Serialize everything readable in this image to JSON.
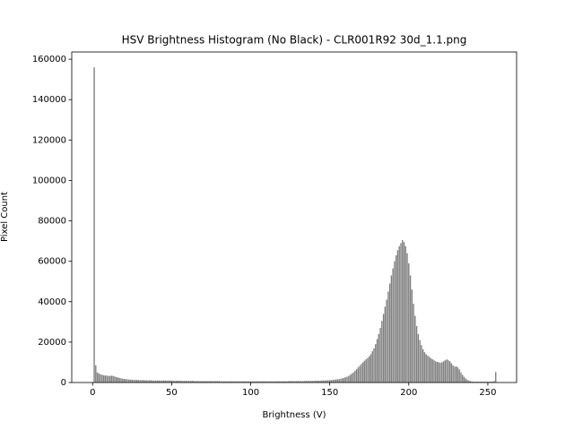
{
  "chart_data": {
    "type": "bar",
    "title": "HSV Brightness Histogram (No Black) - CLR001R92 30d_1.1.png",
    "x_label": "Brightness (V)",
    "y_label": "Pixel Count",
    "color": "#808080",
    "x": [
      1,
      2,
      3,
      4,
      5,
      6,
      7,
      8,
      9,
      10,
      11,
      12,
      13,
      14,
      15,
      16,
      17,
      18,
      19,
      20,
      21,
      22,
      23,
      24,
      25,
      26,
      27,
      28,
      29,
      30,
      31,
      32,
      33,
      34,
      35,
      36,
      37,
      38,
      39,
      40,
      41,
      42,
      43,
      44,
      45,
      46,
      47,
      48,
      49,
      50,
      51,
      52,
      53,
      54,
      55,
      56,
      57,
      58,
      59,
      60,
      61,
      62,
      63,
      64,
      65,
      66,
      67,
      68,
      69,
      70,
      71,
      72,
      73,
      74,
      75,
      76,
      77,
      78,
      79,
      80,
      81,
      82,
      83,
      84,
      85,
      86,
      87,
      88,
      89,
      90,
      91,
      92,
      93,
      94,
      95,
      96,
      97,
      98,
      99,
      100,
      101,
      102,
      103,
      104,
      105,
      106,
      107,
      108,
      109,
      110,
      111,
      112,
      113,
      114,
      115,
      116,
      117,
      118,
      119,
      120,
      121,
      122,
      123,
      124,
      125,
      126,
      127,
      128,
      129,
      130,
      131,
      132,
      133,
      134,
      135,
      136,
      137,
      138,
      139,
      140,
      141,
      142,
      143,
      144,
      145,
      146,
      147,
      148,
      149,
      150,
      151,
      152,
      153,
      154,
      155,
      156,
      157,
      158,
      159,
      160,
      161,
      162,
      163,
      164,
      165,
      166,
      167,
      168,
      169,
      170,
      171,
      172,
      173,
      174,
      175,
      176,
      177,
      178,
      179,
      180,
      181,
      182,
      183,
      184,
      185,
      186,
      187,
      188,
      189,
      190,
      191,
      192,
      193,
      194,
      195,
      196,
      197,
      198,
      199,
      200,
      201,
      202,
      203,
      204,
      205,
      206,
      207,
      208,
      209,
      210,
      211,
      212,
      213,
      214,
      215,
      216,
      217,
      218,
      219,
      220,
      221,
      222,
      223,
      224,
      225,
      226,
      227,
      228,
      229,
      230,
      231,
      232,
      233,
      234,
      235,
      236,
      237,
      238,
      239,
      240,
      241,
      242,
      243,
      244,
      245,
      246,
      247,
      248,
      249,
      250,
      251,
      252,
      253,
      254,
      255
    ],
    "values": [
      156000,
      8500,
      5000,
      4500,
      4000,
      3800,
      3600,
      3500,
      3400,
      3300,
      3200,
      3400,
      3300,
      3000,
      2700,
      2500,
      2300,
      2100,
      1900,
      1800,
      1700,
      1600,
      1500,
      1400,
      1400,
      1300,
      1300,
      1300,
      1200,
      1200,
      1200,
      1200,
      1100,
      1100,
      1100,
      1100,
      1100,
      1000,
      1000,
      1000,
      1000,
      1000,
      1000,
      1000,
      1000,
      1000,
      1000,
      1000,
      1000,
      1000,
      900,
      900,
      900,
      900,
      900,
      900,
      800,
      800,
      800,
      800,
      800,
      800,
      800,
      800,
      700,
      700,
      700,
      700,
      700,
      700,
      700,
      700,
      700,
      700,
      700,
      700,
      700,
      700,
      700,
      700,
      600,
      600,
      600,
      600,
      600,
      600,
      600,
      600,
      600,
      600,
      600,
      600,
      600,
      600,
      600,
      600,
      600,
      600,
      600,
      600,
      600,
      600,
      600,
      600,
      600,
      600,
      600,
      600,
      600,
      600,
      600,
      600,
      600,
      600,
      600,
      600,
      600,
      600,
      600,
      600,
      600,
      600,
      600,
      700,
      700,
      700,
      700,
      700,
      700,
      700,
      700,
      700,
      700,
      700,
      800,
      800,
      800,
      800,
      800,
      800,
      900,
      900,
      900,
      900,
      1000,
      1000,
      1000,
      1100,
      1100,
      1200,
      1200,
      1300,
      1400,
      1500,
      1600,
      1700,
      1900,
      2100,
      2300,
      2600,
      2900,
      3300,
      3800,
      4400,
      5000,
      5800,
      6600,
      7500,
      8300,
      9200,
      10000,
      10800,
      11500,
      12200,
      13000,
      14000,
      15500,
      17000,
      19000,
      21500,
      24000,
      27000,
      30500,
      34000,
      37500,
      41000,
      45000,
      49000,
      53000,
      56500,
      60000,
      63000,
      65500,
      67500,
      69000,
      70500,
      69500,
      67500,
      64000,
      59000,
      53000,
      46000,
      39000,
      33000,
      28000,
      24000,
      21000,
      18500,
      16500,
      15000,
      14000,
      13300,
      12700,
      12000,
      11500,
      11000,
      10500,
      10200,
      10000,
      9800,
      10000,
      10500,
      11000,
      11500,
      11000,
      10500,
      9500,
      8500,
      7800,
      8000,
      7500,
      6500,
      5000,
      3800,
      2800,
      2000,
      1400,
      1000,
      700,
      500,
      400,
      400,
      400,
      400,
      400,
      400,
      400,
      400,
      400,
      400,
      400,
      400,
      500,
      700,
      5200
    ],
    "xlim": [
      -13.2,
      268.2
    ],
    "xticks": [
      0,
      50,
      100,
      150,
      200,
      250
    ],
    "ylim": [
      0,
      163590
    ],
    "yticks": [
      0,
      20000,
      40000,
      60000,
      80000,
      100000,
      120000,
      140000,
      160000
    ]
  }
}
